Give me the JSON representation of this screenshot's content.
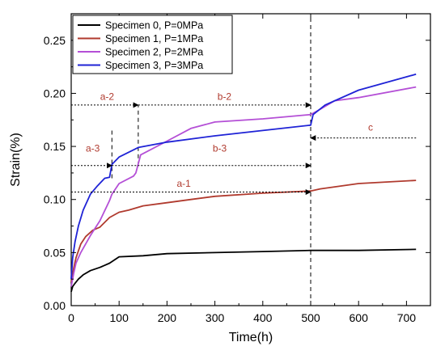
{
  "chart_data": {
    "type": "line",
    "xlabel": "Time(h)",
    "ylabel": "Strain(%)",
    "xlim": [
      0,
      750
    ],
    "ylim": [
      0,
      0.275
    ],
    "x_ticks": [
      0,
      100,
      200,
      300,
      400,
      500,
      600,
      700
    ],
    "y_ticks": [
      0.0,
      0.05,
      0.1,
      0.15,
      0.2,
      0.25
    ],
    "y_tick_labels": [
      "0.00",
      "0.05",
      "0.10",
      "0.15",
      "0.20",
      "0.25"
    ],
    "legend_position": "top-left",
    "series": [
      {
        "name": "Specimen 0, P=0MPa",
        "color": "#000000",
        "x": [
          0,
          3,
          8,
          15,
          25,
          40,
          60,
          80,
          100,
          150,
          200,
          300,
          400,
          500,
          600,
          720
        ],
        "y": [
          0.013,
          0.018,
          0.021,
          0.025,
          0.029,
          0.033,
          0.036,
          0.04,
          0.046,
          0.047,
          0.049,
          0.05,
          0.051,
          0.052,
          0.052,
          0.053
        ]
      },
      {
        "name": "Specimen 1, P=1MPa",
        "color": "#b03a2e",
        "x": [
          0,
          5,
          10,
          20,
          30,
          45,
          60,
          80,
          100,
          120,
          150,
          200,
          250,
          300,
          400,
          500,
          520,
          600,
          720
        ],
        "y": [
          0.022,
          0.035,
          0.045,
          0.058,
          0.065,
          0.071,
          0.074,
          0.083,
          0.088,
          0.09,
          0.094,
          0.097,
          0.1,
          0.103,
          0.106,
          0.108,
          0.11,
          0.115,
          0.118
        ]
      },
      {
        "name": "Specimen 2, P=2MPa",
        "color": "#b44fd6",
        "x": [
          0,
          5,
          10,
          20,
          40,
          60,
          80,
          85,
          100,
          130,
          135,
          145,
          200,
          250,
          300,
          400,
          500,
          520,
          550,
          600,
          720
        ],
        "y": [
          0.018,
          0.03,
          0.04,
          0.05,
          0.066,
          0.08,
          0.099,
          0.105,
          0.115,
          0.122,
          0.125,
          0.142,
          0.155,
          0.167,
          0.173,
          0.176,
          0.18,
          0.185,
          0.193,
          0.196,
          0.206
        ]
      },
      {
        "name": "Specimen 3, P=3MPa",
        "color": "#1f23d6",
        "x": [
          0,
          3,
          8,
          15,
          25,
          40,
          55,
          70,
          80,
          85,
          100,
          140,
          200,
          300,
          400,
          500,
          505,
          530,
          600,
          720
        ],
        "y": [
          0.025,
          0.045,
          0.06,
          0.075,
          0.09,
          0.105,
          0.113,
          0.12,
          0.121,
          0.133,
          0.14,
          0.149,
          0.154,
          0.16,
          0.165,
          0.17,
          0.18,
          0.189,
          0.203,
          0.218
        ]
      }
    ],
    "annotations": [
      {
        "label": "a-1",
        "color": "#b03a2e",
        "x": [
          0,
          500
        ],
        "y": 0.107,
        "arrow": "right",
        "text_x": 235,
        "text_y": 0.112
      },
      {
        "label": "a-2",
        "color": "#b03a2e",
        "x": [
          0,
          140
        ],
        "y": 0.189,
        "arrow": "right",
        "text_x": 75,
        "text_y": 0.194
      },
      {
        "label": "a-3",
        "color": "#b03a2e",
        "x": [
          0,
          85
        ],
        "y": 0.132,
        "arrow": "right",
        "text_x": 45,
        "text_y": 0.145
      },
      {
        "label": "b-2",
        "color": "#b03a2e",
        "x": [
          140,
          500
        ],
        "y": 0.189,
        "arrow": "right",
        "text_x": 320,
        "text_y": 0.194
      },
      {
        "label": "b-3",
        "color": "#b03a2e",
        "x": [
          85,
          500
        ],
        "y": 0.132,
        "arrow": "right",
        "text_x": 310,
        "text_y": 0.145
      },
      {
        "label": "c",
        "color": "#b03a2e",
        "x": [
          500,
          720
        ],
        "y": 0.158,
        "arrow": "left",
        "text_x": 625,
        "text_y": 0.165
      }
    ],
    "reference_lines": [
      {
        "x": 500,
        "y": [
          0,
          0.275
        ]
      },
      {
        "x": 140,
        "y": [
          0.132,
          0.189
        ]
      },
      {
        "x": 85,
        "y": [
          0.12,
          0.168
        ]
      }
    ]
  }
}
